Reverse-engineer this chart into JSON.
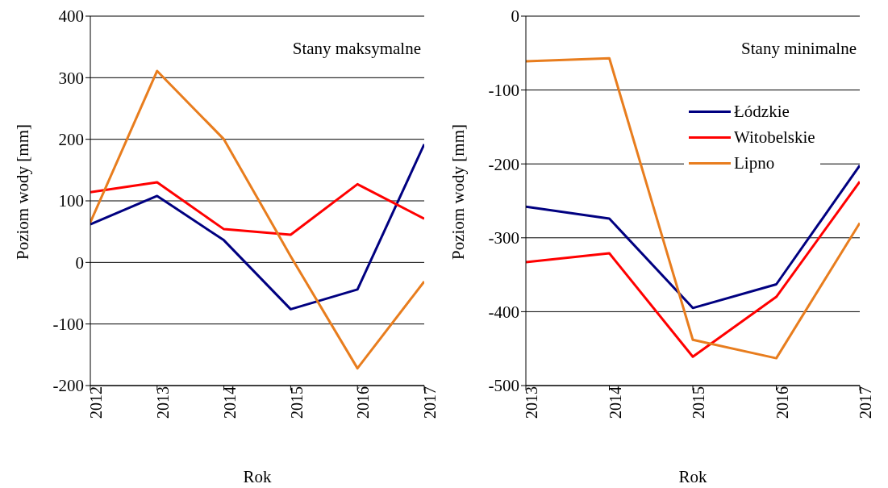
{
  "chart_data": [
    {
      "type": "line",
      "ylabel": "Poziom wody [mm]",
      "xlabel": "Rok",
      "annotations": [
        "Stany maksymalne"
      ],
      "categories": [
        "2012",
        "2013",
        "2014",
        "2015",
        "2016",
        "2017"
      ],
      "ylim": [
        -200,
        400
      ],
      "yticks": [
        -200,
        -100,
        0,
        100,
        200,
        300,
        400
      ],
      "grid": "y",
      "legend": false,
      "marker": "none",
      "series": [
        {
          "color": "#000080",
          "values": [
            62,
            108,
            36,
            -76,
            -44,
            192
          ]
        },
        {
          "color": "#ff0000",
          "values": [
            114,
            130,
            54,
            45,
            127,
            71
          ]
        },
        {
          "color": "#e87d1e",
          "values": [
            65,
            311,
            200,
            10,
            -172,
            -31
          ]
        }
      ]
    },
    {
      "type": "line",
      "ylabel": "Poziom wody [mm]",
      "xlabel": "Rok",
      "annotations": [
        "Stany minimalne"
      ],
      "categories": [
        "2013",
        "2014",
        "2015",
        "2016",
        "2017"
      ],
      "ylim": [
        -500,
        0
      ],
      "yticks": [
        -500,
        -400,
        -300,
        -200,
        -100,
        0
      ],
      "grid": "y",
      "legend": "top right",
      "marker": "none",
      "series": [
        {
          "name": "Łódzkie",
          "color": "#000080",
          "values": [
            -258,
            -274,
            -395,
            -363,
            -202
          ]
        },
        {
          "name": "Witobelskie",
          "color": "#ff0000",
          "values": [
            -333,
            -321,
            -461,
            -380,
            -224
          ]
        },
        {
          "name": "Lipno",
          "color": "#e87d1e",
          "values": [
            -61,
            -57,
            -438,
            -463,
            -280
          ]
        }
      ]
    }
  ]
}
